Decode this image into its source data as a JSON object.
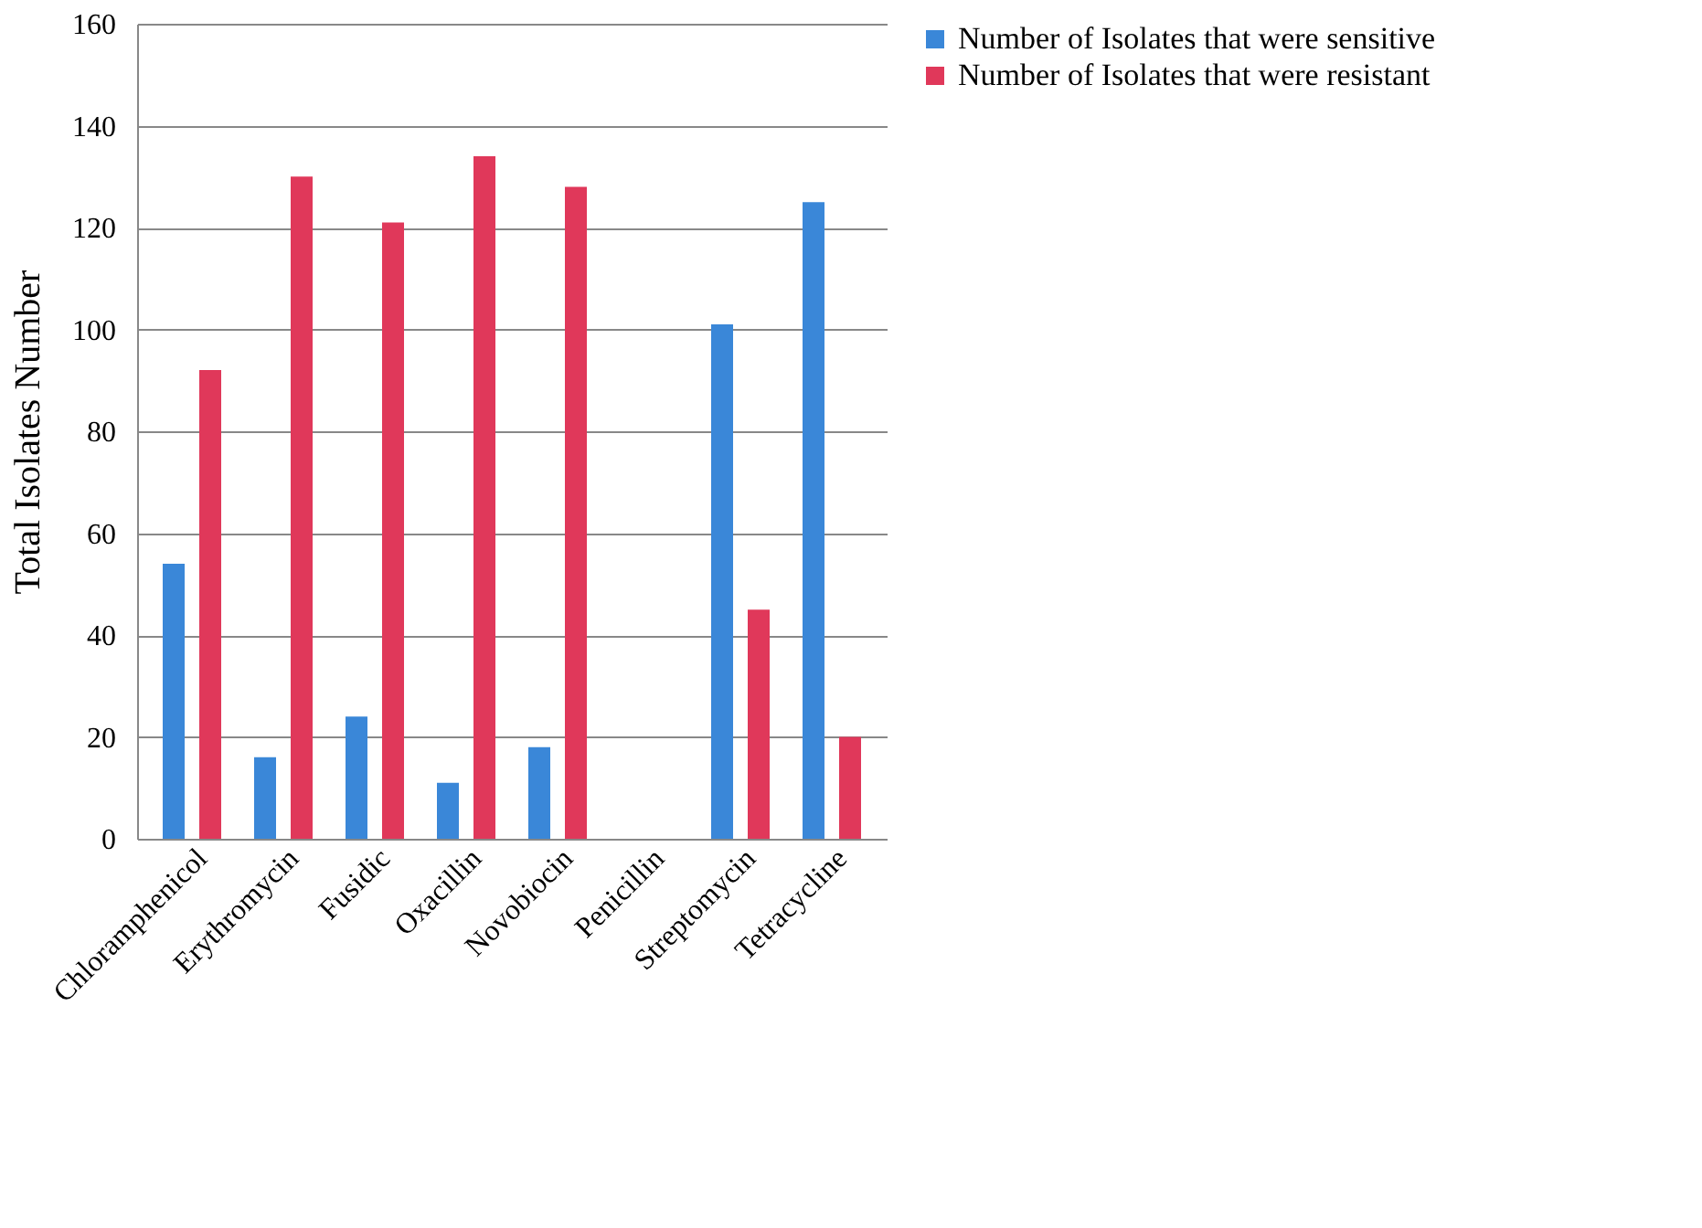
{
  "chart_data": {
    "type": "bar",
    "ylabel": "Total Isolates Number",
    "categories": [
      "Chloramphenicol",
      "Erythromycin",
      "Fusidic",
      "Oxacillin",
      "Novobiocin",
      "Penicillin",
      "Streptomycin",
      "Tetracycline"
    ],
    "series": [
      {
        "name": "Number of Isolates that were sensitive",
        "color": "#3a87d8",
        "values": [
          54,
          16,
          24,
          11,
          18,
          0,
          101,
          125
        ]
      },
      {
        "name": "Number of Isolates that were resistant",
        "color": "#e0385a",
        "values": [
          92,
          130,
          121,
          134,
          128,
          0,
          45,
          20
        ]
      }
    ],
    "ylim": [
      0,
      160
    ],
    "yticks": [
      0,
      20,
      40,
      60,
      80,
      100,
      120,
      140,
      160
    ],
    "grid": "y",
    "legend": "right"
  }
}
